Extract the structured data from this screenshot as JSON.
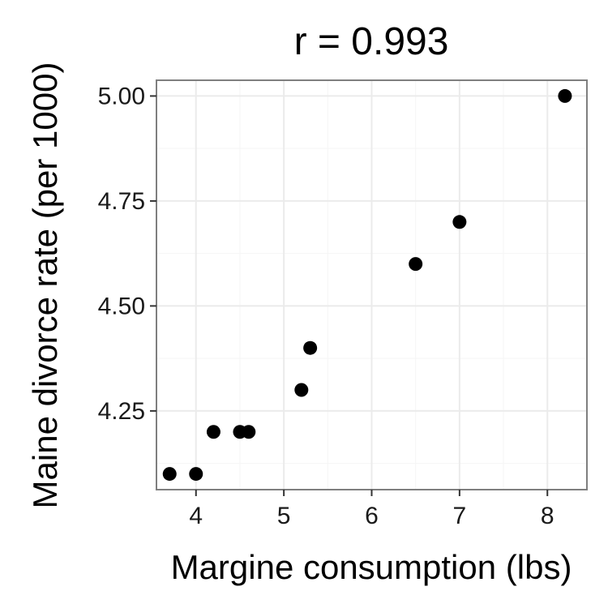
{
  "chart_data": {
    "type": "scatter",
    "title": "r = 0.993",
    "xlabel": "Margine consumption (lbs)",
    "ylabel": "Maine divorce rate (per 1000)",
    "xlim": [
      3.55,
      8.45
    ],
    "ylim": [
      4.0625,
      5.0375
    ],
    "x_ticks": [
      4,
      5,
      6,
      7,
      8
    ],
    "x_tick_labels": [
      "4",
      "5",
      "6",
      "7",
      "8"
    ],
    "x_minor_ticks": [
      4.5,
      5.5,
      6.5,
      7.5
    ],
    "y_ticks": [
      4.25,
      4.5,
      4.75,
      5.0
    ],
    "y_tick_labels": [
      "4.25",
      "4.50",
      "4.75",
      "5.00"
    ],
    "y_minor_ticks": [
      4.125,
      4.375,
      4.625,
      4.875
    ],
    "grid": true,
    "legend": "none",
    "points": [
      {
        "x": 3.7,
        "y": 4.1
      },
      {
        "x": 4.0,
        "y": 4.1
      },
      {
        "x": 4.2,
        "y": 4.2
      },
      {
        "x": 4.5,
        "y": 4.2
      },
      {
        "x": 4.6,
        "y": 4.2
      },
      {
        "x": 5.2,
        "y": 4.3
      },
      {
        "x": 5.3,
        "y": 4.4
      },
      {
        "x": 6.5,
        "y": 4.6
      },
      {
        "x": 7.0,
        "y": 4.7
      },
      {
        "x": 8.2,
        "y": 5.0
      }
    ],
    "colors": {
      "point": "#000000",
      "panel_border": "#7f7f7f",
      "major_grid": "#ebebeb",
      "minor_grid": "#f5f5f5",
      "tick_mark": "#333333"
    }
  }
}
